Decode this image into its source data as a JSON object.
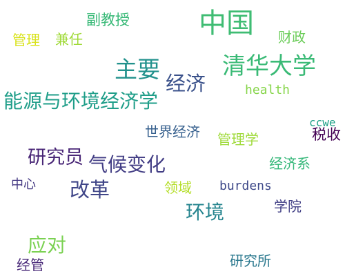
{
  "word_cloud": {
    "words": [
      {
        "text": "中国",
        "color": "#3fbc73"
      },
      {
        "text": "清华大学",
        "color": "#3aba76"
      },
      {
        "text": "主要",
        "color": "#21918c"
      },
      {
        "text": "经济",
        "color": "#3b528b"
      },
      {
        "text": "能源与环境经济学",
        "color": "#1f9e89"
      },
      {
        "text": "副教授",
        "color": "#38b977"
      },
      {
        "text": "财政",
        "color": "#6ccd5a"
      },
      {
        "text": "管理",
        "color": "#d8e219"
      },
      {
        "text": "兼任",
        "color": "#a0da39"
      },
      {
        "text": "health",
        "color": "#86d549"
      },
      {
        "text": "世界经济",
        "color": "#355f8d"
      },
      {
        "text": "ccwe",
        "color": "#1fa187"
      },
      {
        "text": "管理学",
        "color": "#9fda3a"
      },
      {
        "text": "税收",
        "color": "#440154"
      },
      {
        "text": "研究员",
        "color": "#482576"
      },
      {
        "text": "气候变化",
        "color": "#433e85"
      },
      {
        "text": "经济系",
        "color": "#35b779"
      },
      {
        "text": "中心",
        "color": "#443983"
      },
      {
        "text": "改革",
        "color": "#404688"
      },
      {
        "text": "领域",
        "color": "#b5de2b"
      },
      {
        "text": "burdens",
        "color": "#3e4989"
      },
      {
        "text": "学院",
        "color": "#424086"
      },
      {
        "text": "环境",
        "color": "#25848e"
      },
      {
        "text": "应对",
        "color": "#7ad151"
      },
      {
        "text": "经管",
        "color": "#482878"
      },
      {
        "text": "研究所",
        "color": "#2a788e"
      }
    ]
  }
}
